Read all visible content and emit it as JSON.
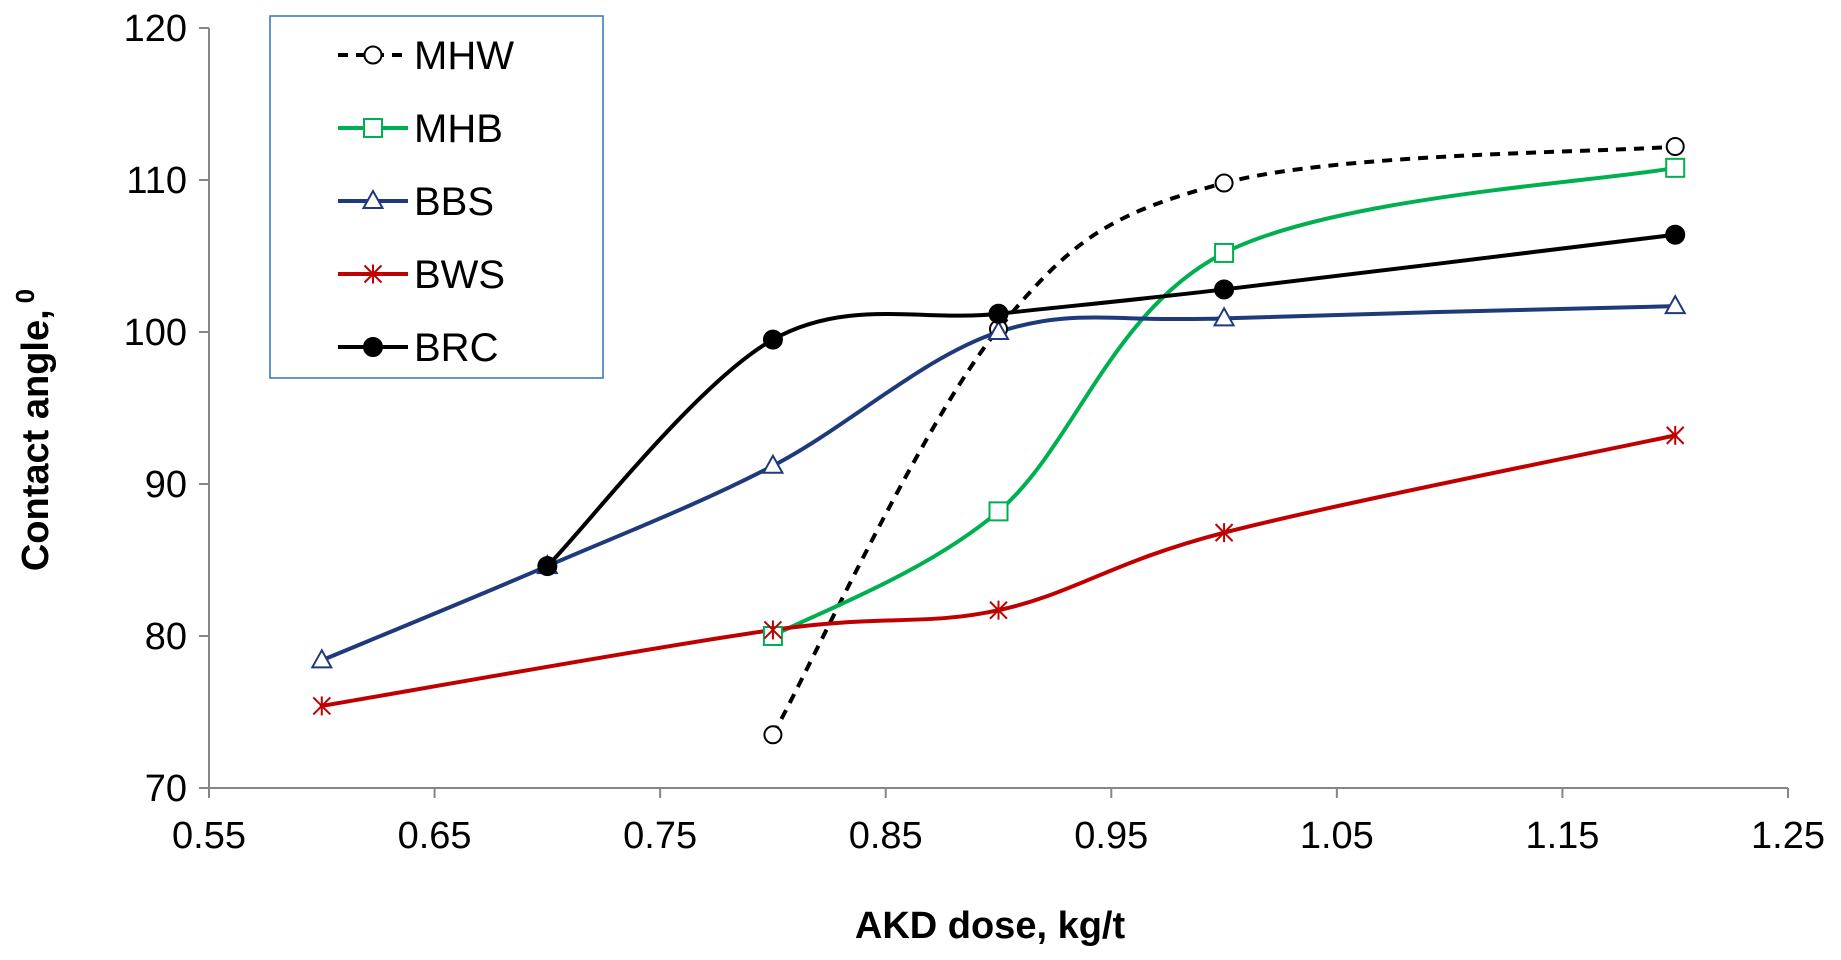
{
  "chart_data": {
    "type": "line",
    "xlabel": "AKD dose, kg/t",
    "ylabel": "Contact angle,",
    "ylabel_superscript": "0",
    "xlim": [
      0.55,
      1.25
    ],
    "ylim": [
      70,
      120
    ],
    "xticks": [
      "0.55",
      "0.65",
      "0.75",
      "0.85",
      "0.95",
      "1.05",
      "1.15",
      "1.25"
    ],
    "yticks": [
      "70",
      "80",
      "90",
      "100",
      "110",
      "120"
    ],
    "grid": false,
    "legend_position": "top-left",
    "series": [
      {
        "name": "MHW",
        "color": "#000000",
        "dash": true,
        "marker": "open-circle",
        "x": [
          0.8,
          0.9,
          1.0,
          1.2
        ],
        "y": [
          73.5,
          100.2,
          109.8,
          112.2
        ]
      },
      {
        "name": "MHB",
        "color": "#00b050",
        "dash": false,
        "marker": "open-square",
        "x": [
          0.8,
          0.9,
          1.0,
          1.2
        ],
        "y": [
          80.0,
          88.2,
          105.2,
          110.8
        ]
      },
      {
        "name": "BBS",
        "color": "#1f3a7a",
        "dash": false,
        "marker": "open-triangle",
        "x": [
          0.6,
          0.7,
          0.8,
          0.9,
          1.0,
          1.2
        ],
        "y": [
          78.4,
          84.6,
          91.2,
          100.0,
          100.9,
          101.7
        ]
      },
      {
        "name": "BWS",
        "color": "#c00000",
        "dash": false,
        "marker": "asterisk",
        "x": [
          0.6,
          0.8,
          0.9,
          1.0,
          1.2
        ],
        "y": [
          75.4,
          80.4,
          81.7,
          86.8,
          93.2
        ]
      },
      {
        "name": "BRC",
        "color": "#000000",
        "dash": false,
        "marker": "filled-circle",
        "x": [
          0.7,
          0.8,
          0.9,
          1.0,
          1.2
        ],
        "y": [
          84.6,
          99.5,
          101.2,
          102.8,
          106.4
        ]
      }
    ]
  }
}
